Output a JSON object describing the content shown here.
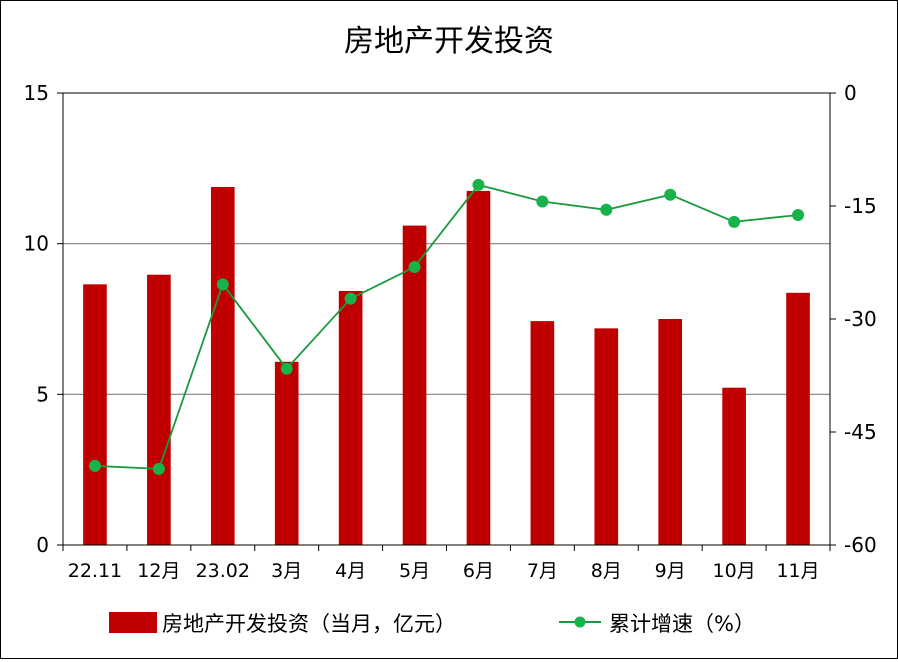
{
  "chart_data": {
    "type": "bar",
    "title": "房地产开发投资",
    "categories": [
      "22.11",
      "12月",
      "23.02",
      "3月",
      "4月",
      "5月",
      "6月",
      "7月",
      "8月",
      "9月",
      "10月",
      "11月"
    ],
    "series": [
      {
        "name": "房地产开发投资（当月，亿元）",
        "type": "bar",
        "axis": "left",
        "color": "#c00000",
        "values": [
          8.65,
          8.97,
          11.88,
          6.08,
          8.43,
          10.6,
          11.75,
          7.43,
          7.19,
          7.5,
          5.22,
          8.37
        ]
      },
      {
        "name": "累计增速（%）",
        "type": "line",
        "axis": "right",
        "color": "#1a9a3e",
        "marker_color": "#17b24a",
        "values": [
          -49.5,
          -49.9,
          -25.4,
          -36.6,
          -27.3,
          -23.1,
          -12.2,
          -14.4,
          -15.5,
          -13.5,
          -17.1,
          -16.2
        ]
      }
    ],
    "y_left": {
      "min": 0,
      "max": 15,
      "ticks": [
        0,
        5,
        10,
        15
      ]
    },
    "y_right": {
      "min": -60,
      "max": 0,
      "ticks": [
        -60,
        -45,
        -30,
        -15,
        0
      ]
    },
    "grid": "horizontal",
    "legend_position": "bottom"
  }
}
